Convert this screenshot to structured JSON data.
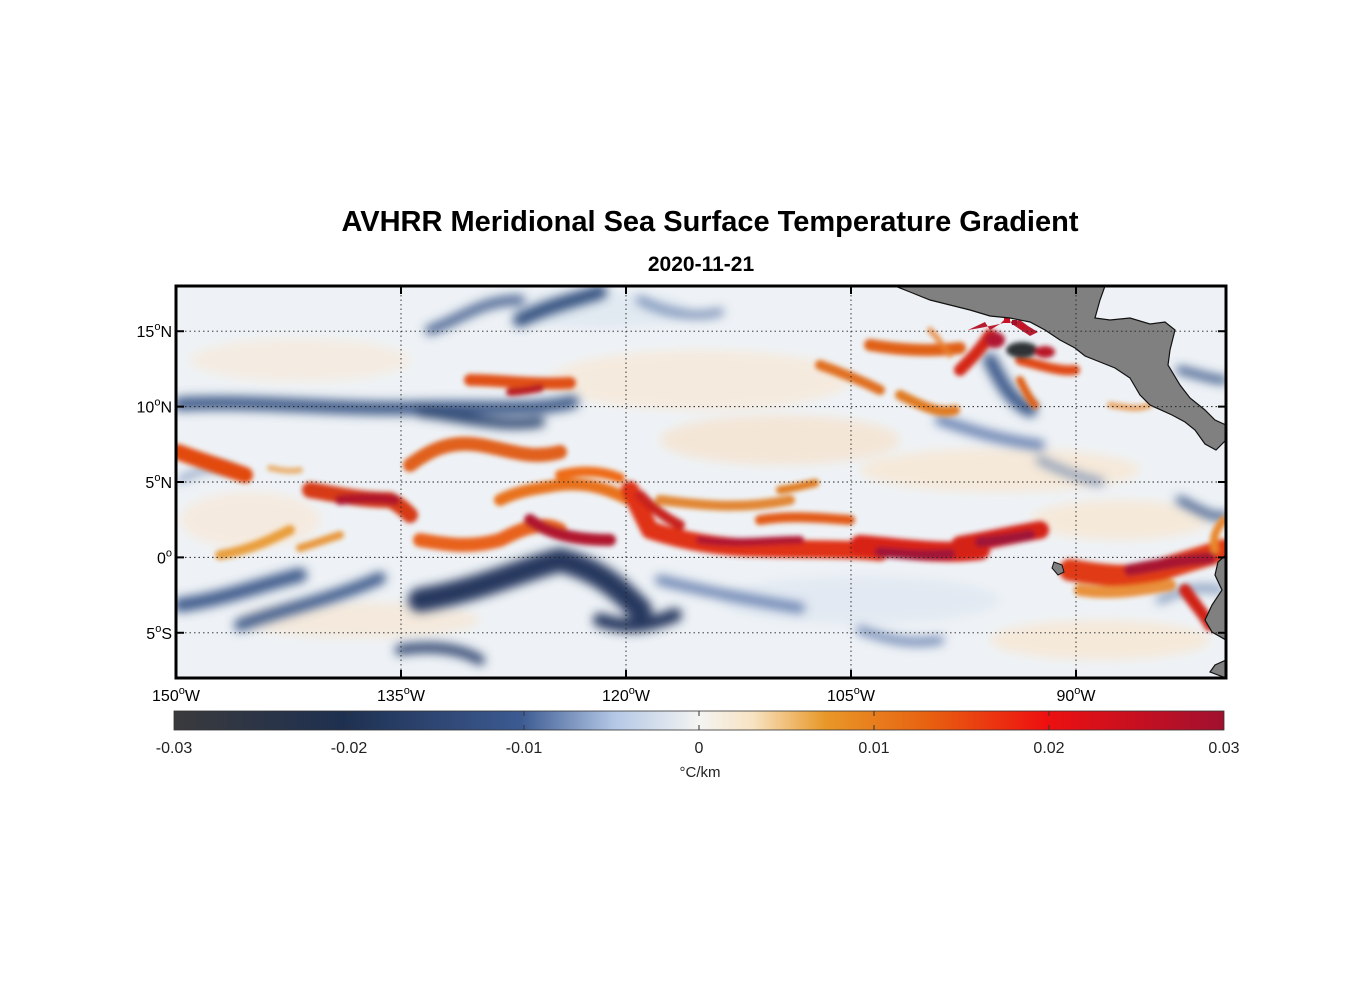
{
  "title": "AVHRR Meridional Sea Surface Temperature Gradient",
  "subtitle": "2020-11-21",
  "map": {
    "lon_range": [
      -150,
      -80
    ],
    "lat_range": [
      -8,
      18
    ],
    "lat_ticks": [
      {
        "value": 15,
        "label": "15",
        "suffix": "N"
      },
      {
        "value": 10,
        "label": "10",
        "suffix": "N"
      },
      {
        "value": 5,
        "label": "5",
        "suffix": "N"
      },
      {
        "value": 0,
        "label": "0",
        "suffix": ""
      },
      {
        "value": -5,
        "label": "5",
        "suffix": "S"
      }
    ],
    "lon_ticks": [
      {
        "value": -150,
        "label": "150",
        "suffix": "W"
      },
      {
        "value": -135,
        "label": "135",
        "suffix": "W"
      },
      {
        "value": -120,
        "label": "120",
        "suffix": "W"
      },
      {
        "value": -105,
        "label": "105",
        "suffix": "W"
      },
      {
        "value": -90,
        "label": "90",
        "suffix": "W"
      }
    ],
    "land_color": "#808080",
    "grid": "dotted"
  },
  "colorbar": {
    "range": [
      -0.03,
      0.03
    ],
    "ticks": [
      "-0.03",
      "-0.02",
      "-0.01",
      "0",
      "0.01",
      "0.02",
      "0.03"
    ],
    "unit": "°C/km",
    "colors": [
      "#3a3a3c",
      "#1e3050",
      "#3a5890",
      "#c8d8ec",
      "#f2f2f2",
      "#f8e6c8",
      "#e08a20",
      "#ee4010",
      "#e01010",
      "#a01030"
    ]
  }
}
